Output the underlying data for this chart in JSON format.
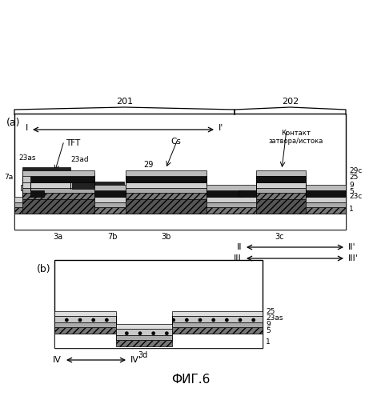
{
  "title": "ФИГ.6",
  "bg_color": "#ffffff",
  "label_a": "(a)",
  "label_b": "(b)",
  "region_201": "201",
  "region_202": "202",
  "label_I": "I",
  "label_Iprime": "I'",
  "label_TFT": "TFT",
  "label_Cs": "Cs",
  "label_contact": "Контакт\nзатвора/истока",
  "label_II": "II",
  "label_IIprime": "II'",
  "label_III": "III",
  "label_IIIprime": "III'",
  "label_IV": "IV",
  "label_IVprime": "IV'",
  "layer_labels_a": [
    "23as",
    "23ad",
    "29",
    "29c",
    "25",
    "9",
    "5",
    "23c",
    "1",
    "7a",
    "3a",
    "7b",
    "3b",
    "3c"
  ],
  "layer_labels_b": [
    "25",
    "23as",
    "9",
    "5",
    "1",
    "3d"
  ],
  "colors": {
    "black": "#000000",
    "dark_gray": "#404040",
    "medium_gray": "#808080",
    "light_gray": "#b0b0b0",
    "very_light_gray": "#d0d0d0",
    "white": "#ffffff"
  }
}
